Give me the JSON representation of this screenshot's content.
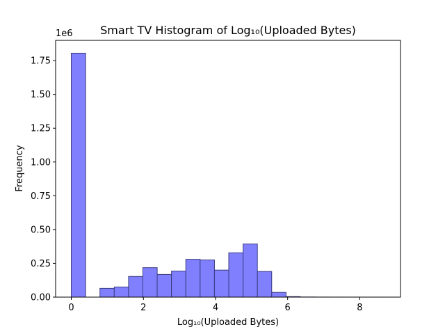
{
  "chart_data": {
    "type": "bar",
    "title": "Smart TV Histogram of Log₁₀(Uploaded Bytes)",
    "xlabel": "Log₁₀(Uploaded Bytes)",
    "ylabel": "Frequency",
    "offset_label": "1e6",
    "xlim": [
      -0.435,
      9.13
    ],
    "ylim": [
      0,
      1.9
    ],
    "xticks": [
      0,
      2,
      4,
      6,
      8
    ],
    "xtick_labels": [
      "0",
      "2",
      "4",
      "6",
      "8"
    ],
    "yticks": [
      0,
      0.25,
      0.5,
      0.75,
      1.0,
      1.25,
      1.5,
      1.75
    ],
    "ytick_labels": [
      "0.00",
      "0.25",
      "0.50",
      "0.75",
      "1.00",
      "1.25",
      "1.50",
      "1.75"
    ],
    "grid": false,
    "bar_color": "#8080ff",
    "edge_color": "#3a3a80",
    "bin_edges": [
      0,
      0.397,
      0.794,
      1.191,
      1.588,
      1.985,
      2.382,
      2.779,
      3.176,
      3.573,
      3.97,
      4.367,
      4.764,
      5.161,
      5.558,
      5.955,
      6.352,
      6.749,
      7.146,
      7.543,
      7.94,
      8.337,
      8.734
    ],
    "values": [
      1.805,
      0,
      0.065,
      0.075,
      0.153,
      0.218,
      0.168,
      0.193,
      0.28,
      0.275,
      0.2,
      0.328,
      0.393,
      0.19,
      0.035,
      0.004,
      0.001,
      0.0005,
      0.0003,
      0.0002,
      0.0001,
      0.0001
    ]
  }
}
